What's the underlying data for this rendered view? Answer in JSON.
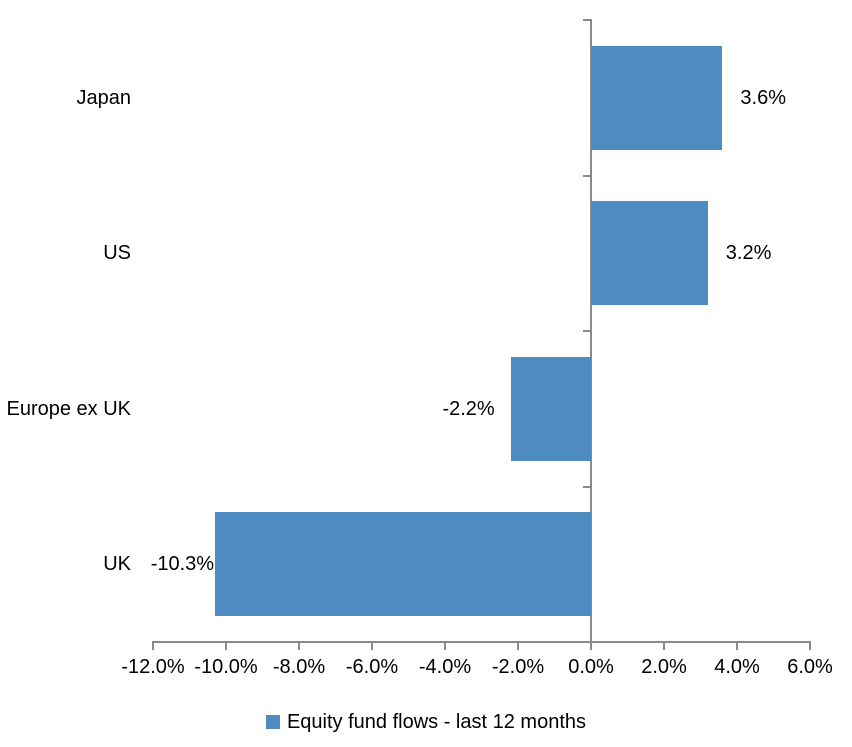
{
  "chart_data": {
    "type": "bar",
    "orientation": "horizontal",
    "title": "",
    "xlabel": "",
    "ylabel": "",
    "categories": [
      "Japan",
      "US",
      "Europe ex UK",
      "UK"
    ],
    "values": [
      3.6,
      3.2,
      -2.2,
      -10.3
    ],
    "value_labels": [
      "3.6%",
      "3.2%",
      "-2.2%",
      "-10.3%"
    ],
    "series_name": "Equity fund flows - last 12 months",
    "xlim": [
      -12,
      6
    ],
    "x_tick_step": 2,
    "x_tick_labels": [
      "-12.0%",
      "-10.0%",
      "-8.0%",
      "-6.0%",
      "-4.0%",
      "-2.0%",
      "0.0%",
      "2.0%",
      "4.0%",
      "6.0%"
    ],
    "grid": false,
    "legend_position": "bottom",
    "bar_color": "#4E8BC0",
    "axis_color": "#8A8A8A",
    "text_color": "#000000",
    "background_color": "#FFFFFF"
  },
  "legend": {
    "swatch_color": "#4E8BC0",
    "label": "Equity fund flows - last 12 months"
  }
}
